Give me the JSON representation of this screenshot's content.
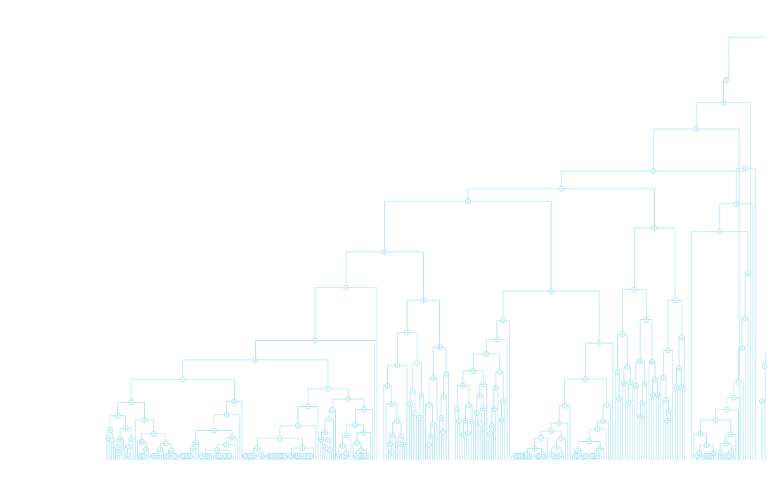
{
  "diagram": {
    "type": "phylogenetic-dendrogram",
    "orientation": "root-top-right",
    "colors": {
      "stroke": "#aee4f4",
      "node_fill": "#ffffff",
      "background": "#ffffff"
    },
    "node_marker": "circle-with-crosshair",
    "labels": []
  }
}
